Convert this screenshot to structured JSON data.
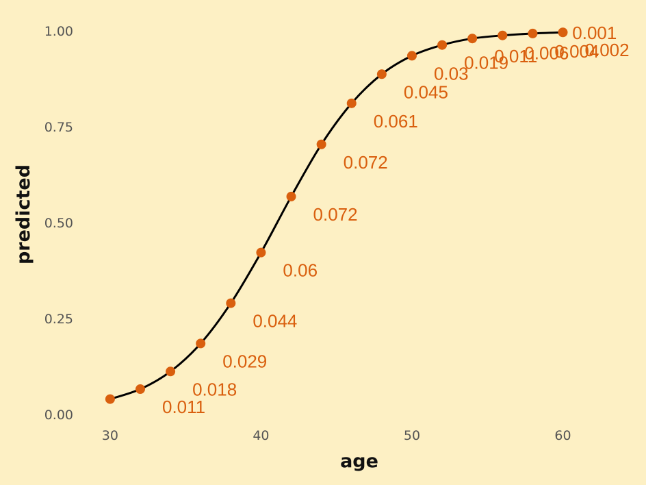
{
  "chart_data": {
    "type": "line",
    "title": "",
    "xlabel": "age",
    "ylabel": "predicted",
    "xlim": [
      28.6,
      65.1
    ],
    "ylim": [
      0.0,
      1.0
    ],
    "x_ticks": [
      30,
      40,
      50,
      60
    ],
    "x_tick_labels": [
      "30",
      "40",
      "50",
      "60"
    ],
    "y_ticks": [
      0.0,
      0.25,
      0.5,
      0.75,
      1.0
    ],
    "y_tick_labels": [
      "0.00",
      "0.25",
      "0.50",
      "0.75",
      "1.00"
    ],
    "grid": false,
    "legend": "none",
    "line_color": "#000000",
    "point_color": "#d95f0e",
    "background_color": "#fdf0c4",
    "series": [
      {
        "x": [
          30,
          32,
          34,
          36,
          38,
          40,
          42,
          44,
          46,
          48,
          50,
          52,
          54,
          56,
          58,
          60
        ],
        "y": [
          0.04,
          0.066,
          0.112,
          0.185,
          0.29,
          0.422,
          0.568,
          0.704,
          0.811,
          0.887,
          0.935,
          0.963,
          0.98,
          0.988,
          0.993,
          0.996
        ],
        "point_labels": [
          "",
          "0.011",
          "0.018",
          "0.029",
          "0.044",
          "0.06",
          "0.072",
          "0.072",
          "0.061",
          "0.045",
          "0.03",
          "0.019",
          "0.011",
          "0.006",
          "0.004",
          "0.002"
        ]
      }
    ],
    "extra_annotations": [
      {
        "x": 62.1,
        "y": 0.996,
        "text": "0.001"
      }
    ]
  }
}
